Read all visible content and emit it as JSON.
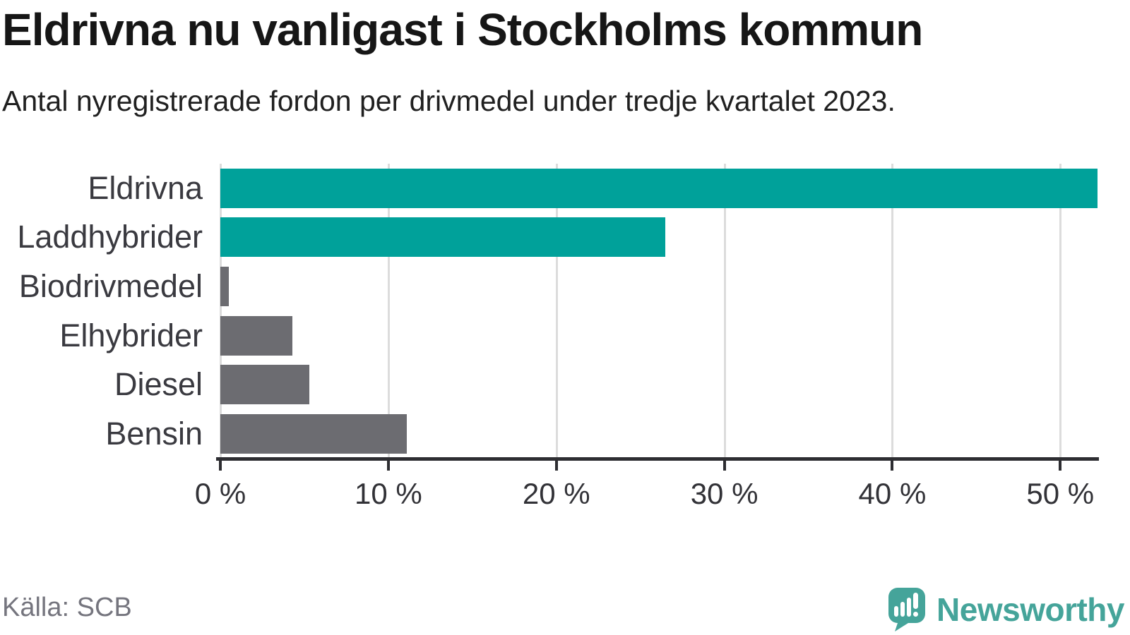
{
  "header": {
    "title": "Eldrivna nu vanligast i Stockholms kommun",
    "subtitle": "Antal nyregistrerade fordon per drivmedel under tredje kvartalet 2023."
  },
  "chart_data": {
    "type": "bar",
    "orientation": "horizontal",
    "title": "Eldrivna nu vanligast i Stockholms kommun",
    "subtitle": "Antal nyregistrerade fordon per drivmedel under tredje kvartalet 2023.",
    "categories": [
      "Eldrivna",
      "Laddhybrider",
      "Biodrivmedel",
      "Elhybrider",
      "Diesel",
      "Bensin"
    ],
    "values": [
      52.2,
      26.5,
      0.5,
      4.3,
      5.3,
      11.1
    ],
    "unit": "%",
    "xlim": [
      0,
      52.3
    ],
    "xticks": [
      0,
      10,
      20,
      30,
      40,
      50
    ],
    "xtick_labels": [
      "0 %",
      "10 %",
      "20 %",
      "30 %",
      "40 %",
      "50 %"
    ],
    "grid": true,
    "legend": "none",
    "bar_colors": [
      "#00a19a",
      "#00a19a",
      "#6c6c71",
      "#6c6c71",
      "#6c6c71",
      "#6c6c71"
    ]
  },
  "colors": {
    "accent_teal": "#00a19a",
    "neutral_gray": "#6c6c71",
    "gridline": "#dcdcdc",
    "axis": "#2d2d31",
    "brand_teal": "#45a49a"
  },
  "footer": {
    "source": "Källa: SCB",
    "brand": "Newsworthy"
  }
}
